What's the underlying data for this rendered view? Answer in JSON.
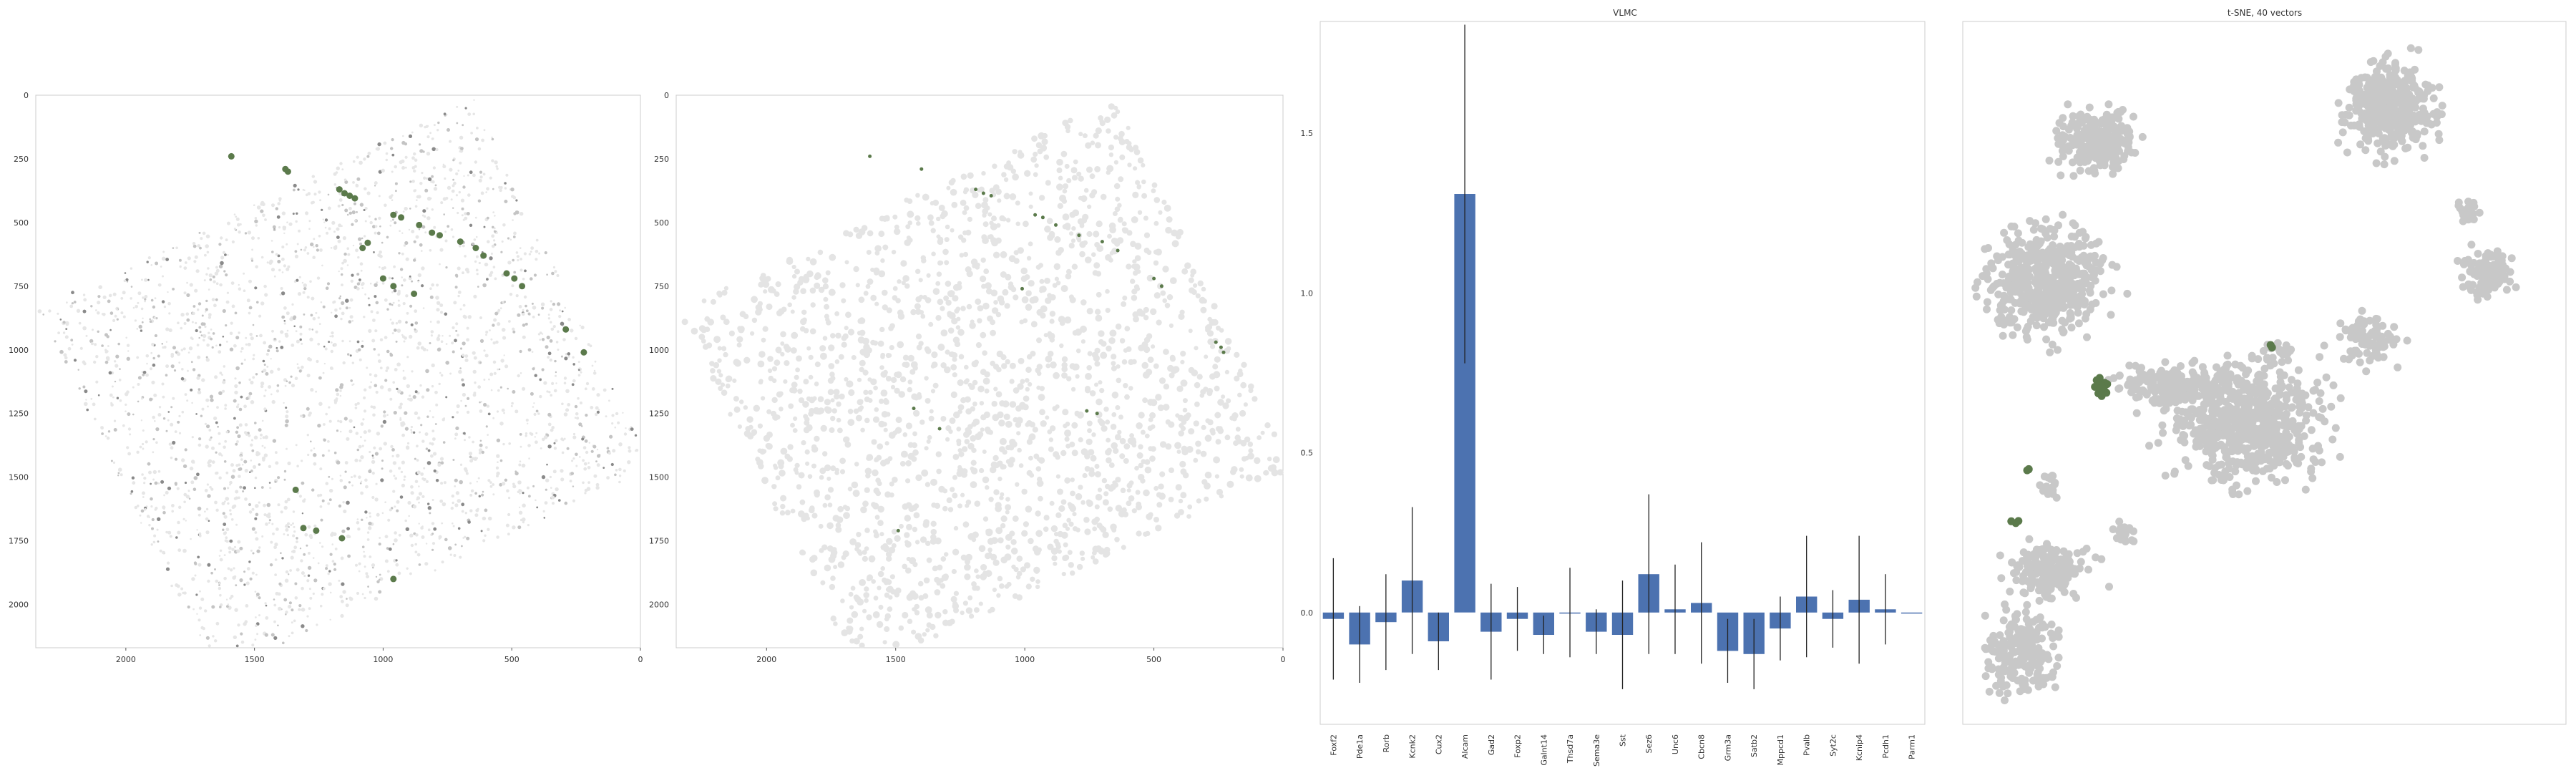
{
  "chart_data": [
    {
      "type": "scatter",
      "title": "",
      "xlabel": "",
      "ylabel": "",
      "xlim": [
        2350,
        0
      ],
      "ylim": [
        2170,
        0
      ],
      "grid": false,
      "xticks": [
        "2000",
        "1500",
        "1000",
        "500",
        "0"
      ],
      "yticks": [
        "0",
        "250",
        "500",
        "750",
        "1000",
        "1250",
        "1500",
        "1750",
        "2000"
      ],
      "series": [
        {
          "role": "highlighted cells",
          "color": "#5b7a4b",
          "points": [
            [
              1590,
              240
            ],
            [
              1380,
              290
            ],
            [
              1370,
              300
            ],
            [
              1170,
              370
            ],
            [
              1150,
              385
            ],
            [
              1130,
              395
            ],
            [
              1110,
              405
            ],
            [
              960,
              470
            ],
            [
              930,
              480
            ],
            [
              860,
              510
            ],
            [
              810,
              540
            ],
            [
              780,
              550
            ],
            [
              700,
              575
            ],
            [
              640,
              600
            ],
            [
              610,
              630
            ],
            [
              520,
              700
            ],
            [
              490,
              720
            ],
            [
              460,
              750
            ],
            [
              1060,
              580
            ],
            [
              1080,
              600
            ],
            [
              1000,
              720
            ],
            [
              960,
              750
            ],
            [
              880,
              780
            ],
            [
              290,
              920
            ],
            [
              220,
              1010
            ],
            [
              1340,
              1550
            ],
            [
              1310,
              1700
            ],
            [
              1260,
              1710
            ],
            [
              1160,
              1740
            ],
            [
              960,
              1900
            ]
          ]
        }
      ]
    },
    {
      "type": "scatter",
      "title": "",
      "xlabel": "",
      "ylabel": "",
      "xlim": [
        2350,
        0
      ],
      "ylim": [
        2170,
        0
      ],
      "grid": false,
      "xticks": [
        "2000",
        "1500",
        "1000",
        "500",
        "0"
      ],
      "yticks": [
        "0",
        "250",
        "500",
        "750",
        "1000",
        "1250",
        "1500",
        "1750",
        "2000"
      ],
      "series": [
        {
          "role": "highlighted cells",
          "color": "#5b7a4b",
          "points": [
            [
              1600,
              240
            ],
            [
              1400,
              290
            ],
            [
              1190,
              370
            ],
            [
              1160,
              385
            ],
            [
              1130,
              395
            ],
            [
              960,
              470
            ],
            [
              930,
              480
            ],
            [
              880,
              510
            ],
            [
              790,
              550
            ],
            [
              700,
              575
            ],
            [
              640,
              610
            ],
            [
              500,
              720
            ],
            [
              470,
              750
            ],
            [
              1010,
              760
            ],
            [
              260,
              970
            ],
            [
              240,
              990
            ],
            [
              230,
              1010
            ],
            [
              1430,
              1230
            ],
            [
              1330,
              1310
            ],
            [
              1490,
              1710
            ],
            [
              760,
              1240
            ],
            [
              720,
              1250
            ]
          ]
        }
      ]
    },
    {
      "type": "bar",
      "title": "VLMC",
      "xlabel": "",
      "ylabel": "",
      "ylim": [
        -0.35,
        1.85
      ],
      "grid": false,
      "yticks": [
        "0.0",
        "0.5",
        "1.0",
        "1.5"
      ],
      "categories": [
        "Foxf2",
        "Pde1a",
        "Rorb",
        "Kcnk2",
        "Cux2",
        "Alcam",
        "Gad2",
        "Foxp2",
        "Galnt14",
        "Thsd7a",
        "Sema3e",
        "Sst",
        "Sez6",
        "Unc6",
        "Cbcn8",
        "Grm3a",
        "Satb2",
        "Mppcd1",
        "Pvalb",
        "Syt2c",
        "Kcnip4",
        "Pcdh1",
        "Parm1"
      ],
      "values": [
        -0.02,
        -0.1,
        -0.03,
        0.1,
        -0.09,
        1.31,
        -0.06,
        -0.02,
        -0.07,
        0.0,
        -0.06,
        -0.07,
        0.12,
        0.01,
        0.03,
        -0.12,
        -0.13,
        -0.05,
        0.05,
        -0.02,
        0.04,
        0.01,
        0.0
      ],
      "error": [
        0.19,
        0.12,
        0.15,
        0.23,
        0.09,
        0.53,
        0.15,
        0.1,
        0.06,
        0.14,
        0.07,
        0.17,
        0.25,
        0.14,
        0.19,
        0.1,
        0.11,
        0.1,
        0.19,
        0.09,
        0.2,
        0.11,
        0.0
      ],
      "color": "#4c72b0"
    },
    {
      "type": "scatter",
      "title": "t-SNE, 40 vectors",
      "xlabel": "",
      "ylabel": "",
      "grid": false,
      "background_color": "#c8c8c8",
      "highlight_color": "#5b7a4b"
    }
  ]
}
